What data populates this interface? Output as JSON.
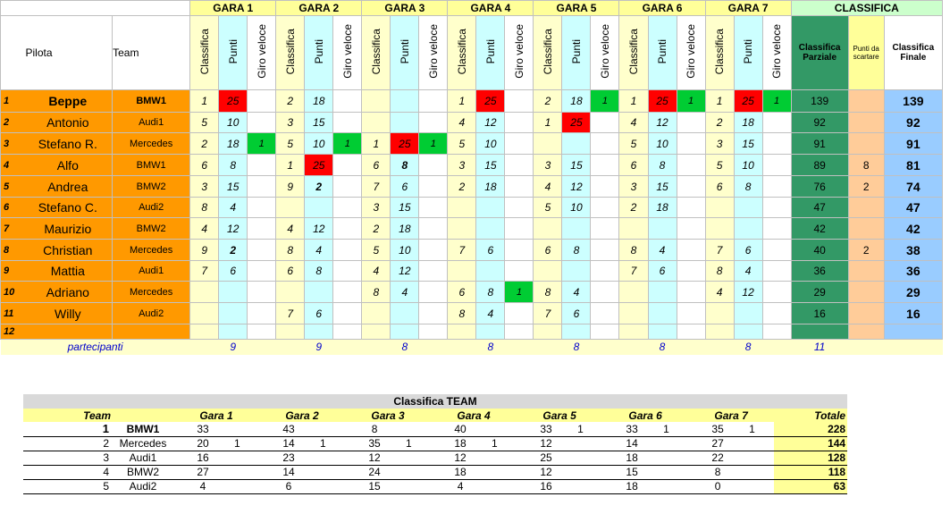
{
  "header": {
    "pilota": "Pilota",
    "team": "Team",
    "races": [
      "GARA 1",
      "GARA 2",
      "GARA 3",
      "GARA 4",
      "GARA 5",
      "GARA 6",
      "GARA 7"
    ],
    "classifica": "CLASSIFICA",
    "sub": [
      "Classifica",
      "Punti",
      "Giro veloce"
    ],
    "classifica_parziale": "Classifica Parziale",
    "punti_scartare": "Punti da scartare",
    "classifica_finale": "Classifica Finale"
  },
  "rows": [
    {
      "pos": "1",
      "pilota": "Beppe",
      "team": "BMW1",
      "bold": true,
      "races": [
        [
          "1",
          "25",
          "",
          "red"
        ],
        [
          "2",
          "18",
          "",
          ""
        ],
        [
          "",
          "",
          "",
          ""
        ],
        [
          "1",
          "25",
          "",
          "red"
        ],
        [
          "2",
          "18",
          "1",
          "gv"
        ],
        [
          "1",
          "25",
          "1",
          "redgv"
        ],
        [
          "1",
          "25",
          "1",
          "redgv"
        ]
      ],
      "parziale": "139",
      "scarto": "",
      "finale": "139"
    },
    {
      "pos": "2",
      "pilota": "Antonio",
      "team": "Audi1",
      "bold": false,
      "races": [
        [
          "5",
          "10",
          "",
          ""
        ],
        [
          "3",
          "15",
          "",
          ""
        ],
        [
          "",
          "",
          "",
          ""
        ],
        [
          "4",
          "12",
          "",
          ""
        ],
        [
          "1",
          "25",
          "",
          "red"
        ],
        [
          "4",
          "12",
          "",
          ""
        ],
        [
          "2",
          "18",
          "",
          ""
        ]
      ],
      "parziale": "92",
      "scarto": "",
      "finale": "92"
    },
    {
      "pos": "3",
      "pilota": "Stefano R.",
      "team": "Mercedes",
      "bold": false,
      "races": [
        [
          "2",
          "18",
          "1",
          "gv"
        ],
        [
          "5",
          "10",
          "1",
          "gv"
        ],
        [
          "1",
          "25",
          "1",
          "redgv"
        ],
        [
          "5",
          "10",
          "",
          ""
        ],
        [
          "",
          "",
          "",
          ""
        ],
        [
          "5",
          "10",
          "",
          ""
        ],
        [
          "3",
          "15",
          "",
          ""
        ]
      ],
      "parziale": "91",
      "scarto": "",
      "finale": "91"
    },
    {
      "pos": "4",
      "pilota": "Alfo",
      "team": "BMW1",
      "bold": false,
      "races": [
        [
          "6",
          "8",
          "",
          ""
        ],
        [
          "1",
          "25",
          "",
          "red"
        ],
        [
          "6",
          "8",
          "",
          "b"
        ],
        [
          "3",
          "15",
          "",
          ""
        ],
        [
          "3",
          "15",
          "",
          ""
        ],
        [
          "6",
          "8",
          "",
          ""
        ],
        [
          "5",
          "10",
          "",
          ""
        ]
      ],
      "parziale": "89",
      "scarto": "8",
      "finale": "81"
    },
    {
      "pos": "5",
      "pilota": "Andrea",
      "team": "BMW2",
      "bold": false,
      "races": [
        [
          "3",
          "15",
          "",
          ""
        ],
        [
          "9",
          "2",
          "",
          "b"
        ],
        [
          "7",
          "6",
          "",
          ""
        ],
        [
          "2",
          "18",
          "",
          ""
        ],
        [
          "4",
          "12",
          "",
          ""
        ],
        [
          "3",
          "15",
          "",
          ""
        ],
        [
          "6",
          "8",
          "",
          ""
        ]
      ],
      "parziale": "76",
      "scarto": "2",
      "finale": "74"
    },
    {
      "pos": "6",
      "pilota": "Stefano C.",
      "team": "Audi2",
      "bold": false,
      "races": [
        [
          "8",
          "4",
          "",
          ""
        ],
        [
          "",
          "",
          "",
          ""
        ],
        [
          "3",
          "15",
          "",
          ""
        ],
        [
          "",
          "",
          "",
          ""
        ],
        [
          "5",
          "10",
          "",
          ""
        ],
        [
          "2",
          "18",
          "",
          ""
        ],
        [
          "",
          "",
          "",
          ""
        ]
      ],
      "parziale": "47",
      "scarto": "",
      "finale": "47"
    },
    {
      "pos": "7",
      "pilota": "Maurizio",
      "team": "BMW2",
      "bold": false,
      "races": [
        [
          "4",
          "12",
          "",
          ""
        ],
        [
          "4",
          "12",
          "",
          ""
        ],
        [
          "2",
          "18",
          "",
          ""
        ],
        [
          "",
          "",
          "",
          ""
        ],
        [
          "",
          "",
          "",
          ""
        ],
        [
          "",
          "",
          "",
          ""
        ],
        [
          "",
          "",
          "",
          ""
        ]
      ],
      "parziale": "42",
      "scarto": "",
      "finale": "42"
    },
    {
      "pos": "8",
      "pilota": "Christian",
      "team": "Mercedes",
      "bold": false,
      "races": [
        [
          "9",
          "2",
          "",
          "b"
        ],
        [
          "8",
          "4",
          "",
          ""
        ],
        [
          "5",
          "10",
          "",
          ""
        ],
        [
          "7",
          "6",
          "",
          ""
        ],
        [
          "6",
          "8",
          "",
          ""
        ],
        [
          "8",
          "4",
          "",
          ""
        ],
        [
          "7",
          "6",
          "",
          ""
        ]
      ],
      "parziale": "40",
      "scarto": "2",
      "finale": "38"
    },
    {
      "pos": "9",
      "pilota": "Mattia",
      "team": "Audi1",
      "bold": false,
      "races": [
        [
          "7",
          "6",
          "",
          ""
        ],
        [
          "6",
          "8",
          "",
          ""
        ],
        [
          "4",
          "12",
          "",
          ""
        ],
        [
          "",
          "",
          "",
          ""
        ],
        [
          "",
          "",
          "",
          ""
        ],
        [
          "7",
          "6",
          "",
          ""
        ],
        [
          "8",
          "4",
          "",
          ""
        ]
      ],
      "parziale": "36",
      "scarto": "",
      "finale": "36"
    },
    {
      "pos": "10",
      "pilota": "Adriano",
      "team": "Mercedes",
      "bold": false,
      "races": [
        [
          "",
          "",
          "",
          ""
        ],
        [
          "",
          "",
          "",
          ""
        ],
        [
          "8",
          "4",
          "",
          ""
        ],
        [
          "6",
          "8",
          "1",
          "gv"
        ],
        [
          "8",
          "4",
          "",
          ""
        ],
        [
          "",
          "",
          "",
          ""
        ],
        [
          "4",
          "12",
          "",
          ""
        ]
      ],
      "parziale": "29",
      "scarto": "",
      "finale": "29"
    },
    {
      "pos": "11",
      "pilota": "Willy",
      "team": "Audi2",
      "bold": false,
      "races": [
        [
          "",
          "",
          "",
          ""
        ],
        [
          "7",
          "6",
          "",
          ""
        ],
        [
          "",
          "",
          "",
          ""
        ],
        [
          "8",
          "4",
          "",
          ""
        ],
        [
          "7",
          "6",
          "",
          ""
        ],
        [
          "",
          "",
          "",
          ""
        ],
        [
          "",
          "",
          "",
          ""
        ]
      ],
      "parziale": "16",
      "scarto": "",
      "finale": "16"
    },
    {
      "pos": "12",
      "pilota": "",
      "team": "",
      "bold": false,
      "races": [
        [
          "",
          "",
          "",
          ""
        ],
        [
          "",
          "",
          "",
          ""
        ],
        [
          "",
          "",
          "",
          ""
        ],
        [
          "",
          "",
          "",
          ""
        ],
        [
          "",
          "",
          "",
          ""
        ],
        [
          "",
          "",
          "",
          ""
        ],
        [
          "",
          "",
          "",
          ""
        ]
      ],
      "parziale": "",
      "scarto": "",
      "finale": ""
    }
  ],
  "partecipanti": {
    "label": "partecipanti",
    "values": [
      "9",
      "9",
      "8",
      "8",
      "8",
      "8",
      "8"
    ],
    "total": "11"
  },
  "team_table": {
    "title": "Classifica TEAM",
    "headers": [
      "Team",
      "Gara 1",
      "Gara 2",
      "Gara 3",
      "Gara 4",
      "Gara 5",
      "Gara 6",
      "Gara 7",
      "Totale"
    ],
    "rows": [
      {
        "pos": "1",
        "team": "BMW1",
        "bold": true,
        "vals": [
          [
            "33",
            ""
          ],
          [
            "43",
            ""
          ],
          [
            "8",
            ""
          ],
          [
            "40",
            ""
          ],
          [
            "33",
            "1"
          ],
          [
            "33",
            "1"
          ],
          [
            "35",
            "1"
          ]
        ],
        "totale": "228"
      },
      {
        "pos": "2",
        "team": "Mercedes",
        "bold": false,
        "vals": [
          [
            "20",
            "1"
          ],
          [
            "14",
            "1"
          ],
          [
            "35",
            "1"
          ],
          [
            "18",
            "1"
          ],
          [
            "12",
            ""
          ],
          [
            "14",
            ""
          ],
          [
            "27",
            ""
          ]
        ],
        "totale": "144"
      },
      {
        "pos": "3",
        "team": "Audi1",
        "bold": false,
        "vals": [
          [
            "16",
            ""
          ],
          [
            "23",
            ""
          ],
          [
            "12",
            ""
          ],
          [
            "12",
            ""
          ],
          [
            "25",
            ""
          ],
          [
            "18",
            ""
          ],
          [
            "22",
            ""
          ]
        ],
        "totale": "128"
      },
      {
        "pos": "4",
        "team": "BMW2",
        "bold": false,
        "vals": [
          [
            "27",
            ""
          ],
          [
            "14",
            ""
          ],
          [
            "24",
            ""
          ],
          [
            "18",
            ""
          ],
          [
            "12",
            ""
          ],
          [
            "15",
            ""
          ],
          [
            "8",
            ""
          ]
        ],
        "totale": "118"
      },
      {
        "pos": "5",
        "team": "Audi2",
        "bold": false,
        "vals": [
          [
            "4",
            ""
          ],
          [
            "6",
            ""
          ],
          [
            "15",
            ""
          ],
          [
            "4",
            ""
          ],
          [
            "16",
            ""
          ],
          [
            "18",
            ""
          ],
          [
            "0",
            ""
          ]
        ],
        "totale": "63"
      }
    ]
  }
}
